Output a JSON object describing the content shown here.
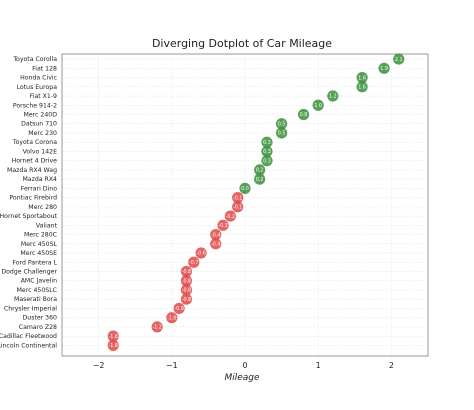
{
  "chart_data": {
    "type": "scatter",
    "title": "Diverging Dotplot of Car Mileage",
    "xlabel": "Mileage",
    "ylabel": "",
    "xlim": [
      -2.5,
      2.5
    ],
    "xticks": [
      -2,
      -1,
      0,
      1,
      2
    ],
    "xtick_labels": [
      "−2",
      "−1",
      "0",
      "1",
      "2"
    ],
    "grid": true,
    "legend": "none",
    "colors": {
      "positive": "#3a8f3a",
      "negative": "#e04848"
    },
    "points": [
      {
        "name": "Toyota Corolla",
        "value": 2.1,
        "label": "2.1"
      },
      {
        "name": "Fiat 128",
        "value": 1.9,
        "label": "1.9"
      },
      {
        "name": "Honda Civic",
        "value": 1.6,
        "label": "1.6"
      },
      {
        "name": "Lotus Europa",
        "value": 1.6,
        "label": "1.6"
      },
      {
        "name": "Fiat X1-9",
        "value": 1.2,
        "label": "1.2"
      },
      {
        "name": "Porsche 914-2",
        "value": 1.0,
        "label": "1.0"
      },
      {
        "name": "Merc 240D",
        "value": 0.8,
        "label": "0.8"
      },
      {
        "name": "Datsun 710",
        "value": 0.5,
        "label": "0.5"
      },
      {
        "name": "Merc 230",
        "value": 0.5,
        "label": "0.5"
      },
      {
        "name": "Toyota Corona",
        "value": 0.3,
        "label": "0.3"
      },
      {
        "name": "Volvo 142E",
        "value": 0.3,
        "label": "0.3"
      },
      {
        "name": "Hornet 4 Drive",
        "value": 0.3,
        "label": "0.3"
      },
      {
        "name": "Mazda RX4 Wag",
        "value": 0.2,
        "label": "0.2"
      },
      {
        "name": "Mazda RX4",
        "value": 0.2,
        "label": "0.2"
      },
      {
        "name": "Ferrari Dino",
        "value": 0.0,
        "label": "0.0"
      },
      {
        "name": "Pontiac Firebird",
        "value": -0.1,
        "label": "-0.1"
      },
      {
        "name": "Merc 280",
        "value": -0.1,
        "label": "-0.1"
      },
      {
        "name": "Hornet Sportabout",
        "value": -0.2,
        "label": "-0.2"
      },
      {
        "name": "Valiant",
        "value": -0.3,
        "label": "-0.3"
      },
      {
        "name": "Merc 280C",
        "value": -0.4,
        "label": "-0.4"
      },
      {
        "name": "Merc 450SL",
        "value": -0.4,
        "label": "-0.4"
      },
      {
        "name": "Merc 450SE",
        "value": -0.6,
        "label": "-0.6"
      },
      {
        "name": "Ford Pantera L",
        "value": -0.7,
        "label": "-0.7"
      },
      {
        "name": "Dodge Challenger",
        "value": -0.8,
        "label": "-0.8"
      },
      {
        "name": "AMC Javelin",
        "value": -0.8,
        "label": "-0.8"
      },
      {
        "name": "Merc 450SLC",
        "value": -0.8,
        "label": "-0.8"
      },
      {
        "name": "Maserati Bora",
        "value": -0.8,
        "label": "-0.8"
      },
      {
        "name": "Chrysler Imperial",
        "value": -0.9,
        "label": "-0.9"
      },
      {
        "name": "Duster 360",
        "value": -1.0,
        "label": "-1.0"
      },
      {
        "name": "Camaro Z28",
        "value": -1.2,
        "label": "-1.2"
      },
      {
        "name": "Cadillac Fleetwood",
        "value": -1.8,
        "label": "-1.8"
      },
      {
        "name": "Lincoln Continental",
        "value": -1.8,
        "label": "-1.8"
      }
    ]
  }
}
